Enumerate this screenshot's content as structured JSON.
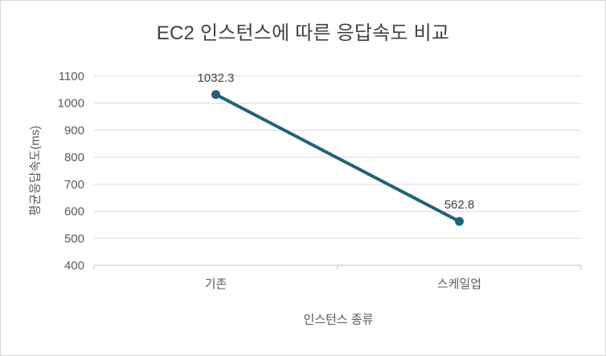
{
  "chart_data": {
    "type": "line",
    "title": "EC2 인스턴스에 따른 응답속도 비교",
    "xlabel": "인스턴스 종류",
    "ylabel": "평균응답속도(ms)",
    "categories": [
      "기존",
      "스케일업"
    ],
    "values": [
      1032.3,
      562.8
    ],
    "data_labels": [
      "1032.3",
      "562.8"
    ],
    "ylim": [
      400,
      1100
    ],
    "yticks": [
      1100,
      1000,
      900,
      800,
      700,
      600,
      500,
      400
    ],
    "grid": true,
    "legend": "none",
    "line_color": "#1E6479",
    "marker": "circle",
    "gridline_color": "#D9D9D9",
    "axis_line_color": "#BFBFBF",
    "title_color": "#404040",
    "tick_color": "#595959"
  }
}
